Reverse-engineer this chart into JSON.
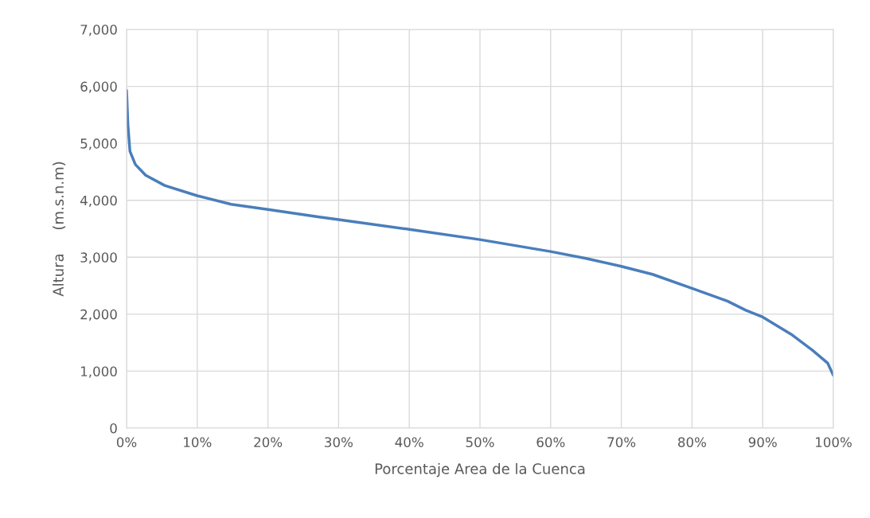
{
  "chart_data": {
    "type": "line",
    "xlabel": "Porcentaje Area de la Cuenca",
    "ylabel": "Altura     (m.s.n.m)",
    "x": [
      0,
      0.19,
      0.48,
      1.24,
      2.7,
      5.4,
      10,
      14.8,
      20,
      27.1,
      30,
      40,
      50,
      60,
      65,
      70,
      74.4,
      80,
      85,
      87.6,
      90,
      94,
      97,
      99.2,
      100
    ],
    "series": [
      {
        "color": "#4a7ebb",
        "values": [
          5930,
          5330,
          4860,
          4630,
          4440,
          4260,
          4080,
          3930,
          3840,
          3710,
          3660,
          3490,
          3310,
          3100,
          2980,
          2840,
          2700,
          2455,
          2230,
          2070,
          1950,
          1650,
          1370,
          1140,
          925
        ]
      }
    ],
    "xlim": [
      0,
      100
    ],
    "xticks": [
      {
        "value": 0,
        "label": "0%"
      },
      {
        "value": 10,
        "label": "10%"
      },
      {
        "value": 20,
        "label": "20%"
      },
      {
        "value": 30,
        "label": "30%"
      },
      {
        "value": 40,
        "label": "40%"
      },
      {
        "value": 50,
        "label": "50%"
      },
      {
        "value": 60,
        "label": "60%"
      },
      {
        "value": 70,
        "label": "70%"
      },
      {
        "value": 80,
        "label": "80%"
      },
      {
        "value": 90,
        "label": "90%"
      },
      {
        "value": 100,
        "label": "100%"
      }
    ],
    "ylim": [
      0,
      7000
    ],
    "yticks": [
      0,
      {
        "value": 1000,
        "label": "1,000"
      },
      {
        "value": 2000,
        "label": "2,000"
      },
      {
        "value": 3000,
        "label": "3,000"
      },
      {
        "value": 4000,
        "label": "4,000"
      },
      {
        "value": 5000,
        "label": "5,000"
      },
      {
        "value": 6000,
        "label": "6,000"
      },
      {
        "value": 7000,
        "label": "7,000"
      }
    ],
    "grid": true,
    "line_style": "solid",
    "marker": "none"
  }
}
